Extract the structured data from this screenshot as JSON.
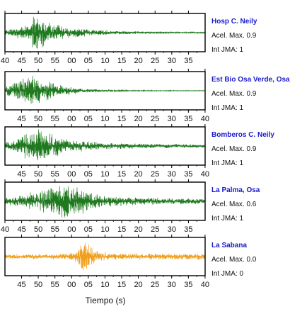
{
  "chart_data": {
    "type": "line",
    "xlabel": "Tiempo (s)",
    "panels": [
      {
        "station": "Hosp C. Neily",
        "accel_label": "Acel. Max. 0.9",
        "jma_label": "Int JMA: 1",
        "color": "#1f7a1f",
        "tick_labels": [
          "40",
          "45",
          "50",
          "55",
          "00",
          "05",
          "10",
          "15",
          "20",
          "25",
          "30",
          "35"
        ],
        "envelope": [
          [
            0,
            0.2
          ],
          [
            0.06,
            0.3
          ],
          [
            0.12,
            0.45
          ],
          [
            0.14,
            1.0
          ],
          [
            0.18,
            0.9
          ],
          [
            0.22,
            0.6
          ],
          [
            0.3,
            0.35
          ],
          [
            0.4,
            0.22
          ],
          [
            0.55,
            0.12
          ],
          [
            0.7,
            0.06
          ],
          [
            1.0,
            0.04
          ]
        ]
      },
      {
        "station": "Est Bio Osa Verde, Osa",
        "accel_label": "Acel. Max. 0.9",
        "jma_label": "Int JMA: 1",
        "color": "#1f7a1f",
        "tick_labels": [
          "45",
          "50",
          "55",
          "00",
          "05",
          "10",
          "15",
          "20",
          "25",
          "30",
          "35",
          "40"
        ],
        "envelope": [
          [
            0,
            0.25
          ],
          [
            0.06,
            0.55
          ],
          [
            0.1,
            0.85
          ],
          [
            0.14,
            1.0
          ],
          [
            0.2,
            0.6
          ],
          [
            0.28,
            0.3
          ],
          [
            0.4,
            0.12
          ],
          [
            0.55,
            0.05
          ],
          [
            0.7,
            0.03
          ],
          [
            1.0,
            0.02
          ]
        ]
      },
      {
        "station": "Bomberos C. Neily",
        "accel_label": "Acel. Max. 0.9",
        "jma_label": "Int JMA: 1",
        "color": "#1f7a1f",
        "tick_labels": [
          "45",
          "50",
          "55",
          "00",
          "05",
          "10",
          "15",
          "20",
          "25",
          "30",
          "35",
          "40"
        ],
        "envelope": [
          [
            0,
            0.2
          ],
          [
            0.05,
            0.3
          ],
          [
            0.1,
            0.8
          ],
          [
            0.15,
            1.0
          ],
          [
            0.2,
            0.9
          ],
          [
            0.28,
            0.5
          ],
          [
            0.35,
            0.35
          ],
          [
            0.5,
            0.2
          ],
          [
            0.7,
            0.14
          ],
          [
            1.0,
            0.1
          ]
        ]
      },
      {
        "station": "La Palma, Osa",
        "accel_label": "Acel. Max. 0.6",
        "jma_label": "Int JMA: 1",
        "color": "#1f7a1f",
        "tick_labels": [
          "40",
          "45",
          "50",
          "55",
          "00",
          "05",
          "10",
          "15",
          "20",
          "25",
          "30",
          "35"
        ],
        "envelope": [
          [
            0,
            0.25
          ],
          [
            0.06,
            0.3
          ],
          [
            0.15,
            0.55
          ],
          [
            0.22,
            0.8
          ],
          [
            0.3,
            1.0
          ],
          [
            0.36,
            0.9
          ],
          [
            0.42,
            0.6
          ],
          [
            0.5,
            0.35
          ],
          [
            0.6,
            0.25
          ],
          [
            0.75,
            0.2
          ],
          [
            0.9,
            0.18
          ],
          [
            1.0,
            0.15
          ]
        ]
      },
      {
        "station": "La Sabana",
        "accel_label": "Acel. Max. 0.0",
        "jma_label": "Int JMA: 0",
        "color": "#f0a020",
        "tick_labels": [
          "45",
          "50",
          "55",
          "00",
          "05",
          "10",
          "15",
          "20",
          "25",
          "30",
          "35",
          "40"
        ],
        "envelope": [
          [
            0,
            0.14
          ],
          [
            0.3,
            0.17
          ],
          [
            0.36,
            0.35
          ],
          [
            0.39,
            1.0
          ],
          [
            0.41,
            0.9
          ],
          [
            0.45,
            0.35
          ],
          [
            0.55,
            0.2
          ],
          [
            0.7,
            0.18
          ],
          [
            1.0,
            0.18
          ]
        ]
      }
    ]
  }
}
